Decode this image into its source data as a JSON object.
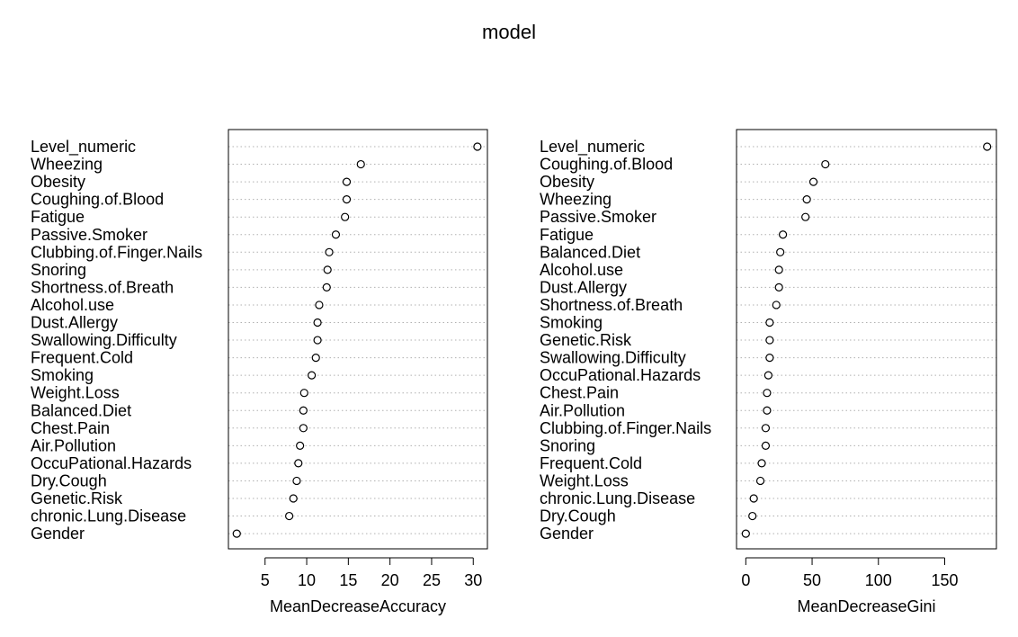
{
  "title": "model",
  "chart_data": [
    {
      "type": "scatter",
      "variant": "dotchart",
      "title": "model",
      "xlabel": "MeanDecreaseAccuracy",
      "ylabel": "",
      "xlim": [
        0.6,
        31.7
      ],
      "xticks": [
        5,
        10,
        15,
        20,
        25,
        30
      ],
      "grid": "dotted horizontal",
      "labels": [
        "Level_numeric",
        "Wheezing",
        "Obesity",
        "Coughing.of.Blood",
        "Fatigue",
        "Passive.Smoker",
        "Clubbing.of.Finger.Nails",
        "Snoring",
        "Shortness.of.Breath",
        "Alcohol.use",
        "Dust.Allergy",
        "Swallowing.Difficulty",
        "Frequent.Cold",
        "Smoking",
        "Weight.Loss",
        "Balanced.Diet",
        "Chest.Pain",
        "Air.Pollution",
        "OccuPational.Hazards",
        "Dry.Cough",
        "Genetic.Risk",
        "chronic.Lung.Disease",
        "Gender"
      ],
      "values": [
        30.5,
        16.5,
        14.8,
        14.8,
        14.6,
        13.5,
        12.7,
        12.5,
        12.4,
        11.5,
        11.3,
        11.3,
        11.1,
        10.6,
        9.7,
        9.6,
        9.6,
        9.2,
        9.0,
        8.8,
        8.4,
        7.9,
        1.6
      ]
    },
    {
      "type": "scatter",
      "variant": "dotchart",
      "title": "model",
      "xlabel": "MeanDecreaseGini",
      "ylabel": "",
      "xlim": [
        -7,
        189
      ],
      "xticks": [
        0,
        50,
        100,
        150
      ],
      "grid": "dotted horizontal",
      "labels": [
        "Level_numeric",
        "Coughing.of.Blood",
        "Obesity",
        "Wheezing",
        "Passive.Smoker",
        "Fatigue",
        "Balanced.Diet",
        "Alcohol.use",
        "Dust.Allergy",
        "Shortness.of.Breath",
        "Smoking",
        "Genetic.Risk",
        "Swallowing.Difficulty",
        "OccuPational.Hazards",
        "Chest.Pain",
        "Air.Pollution",
        "Clubbing.of.Finger.Nails",
        "Snoring",
        "Frequent.Cold",
        "Weight.Loss",
        "chronic.Lung.Disease",
        "Dry.Cough",
        "Gender"
      ],
      "values": [
        182,
        60,
        51,
        46,
        45,
        28,
        26,
        25,
        25,
        23,
        18,
        18,
        18,
        17,
        16,
        16,
        15,
        15,
        12,
        11,
        6,
        5,
        0
      ]
    }
  ]
}
